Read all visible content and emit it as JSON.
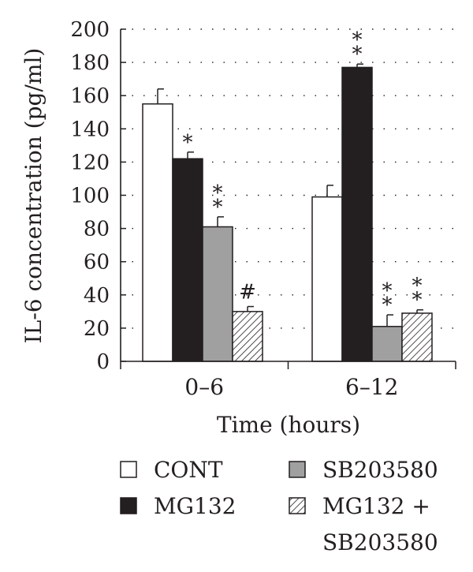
{
  "chart_data": {
    "type": "bar",
    "title": "",
    "xlabel": "Time (hours)",
    "ylabel": "IL-6 concentration (pg/ml)",
    "ylim": [
      0,
      200
    ],
    "yticks": [
      "0",
      "20",
      "40",
      "60",
      "80",
      "100",
      "120",
      "140",
      "160",
      "180",
      "200"
    ],
    "grid": "dotted horizontal",
    "categories": [
      "0–6",
      "6–12"
    ],
    "series": [
      {
        "name": "CONT",
        "values": [
          155,
          99
        ],
        "errors": [
          9,
          7
        ],
        "annotations": [
          "",
          ""
        ],
        "fill": "#ffffff",
        "pattern": "none"
      },
      {
        "name": "MG132",
        "values": [
          122,
          177
        ],
        "errors": [
          4,
          2
        ],
        "annotations": [
          "*",
          "**"
        ],
        "fill": "#231f20",
        "pattern": "none"
      },
      {
        "name": "SB203580",
        "values": [
          81,
          21
        ],
        "errors": [
          6,
          7
        ],
        "annotations": [
          "**",
          "**"
        ],
        "fill": "#a0a0a0",
        "pattern": "none"
      },
      {
        "name": "MG132 + SB203580",
        "legend_lines": [
          "MG132 +",
          "SB203580"
        ],
        "values": [
          30,
          29
        ],
        "errors": [
          3,
          2
        ],
        "annotations": [
          "#",
          "**"
        ],
        "fill": "#ffffff",
        "pattern": "diagonal-hatch"
      }
    ],
    "legend_placement": "bottom"
  }
}
